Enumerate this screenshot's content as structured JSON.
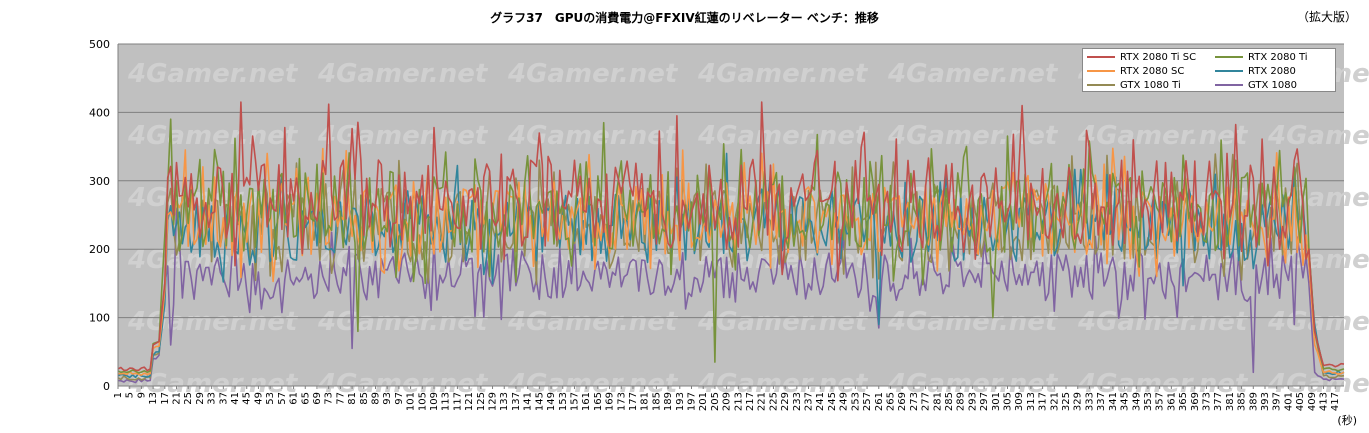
{
  "chart_title": "グラフ37　GPUの消費電力@FFXIV紅蓮のリベレーター ベンチ：推移",
  "edition_note": "（拡大版）",
  "watermark": "4Gamer.net",
  "chart_data": {
    "type": "line",
    "title": "グラフ37　GPUの消費電力@FFXIV紅蓮のリベレーター ベンチ：推移",
    "xlabel": "",
    "x_unit_label": "(秒)",
    "ylabel": "",
    "ylim": [
      0,
      500
    ],
    "yticks": [
      0,
      100,
      200,
      300,
      400,
      500
    ],
    "xlim": [
      1,
      420
    ],
    "xticks": [
      1,
      5,
      9,
      13,
      17,
      21,
      25,
      29,
      33,
      37,
      41,
      45,
      49,
      53,
      57,
      61,
      65,
      69,
      73,
      77,
      81,
      85,
      89,
      93,
      97,
      101,
      105,
      109,
      113,
      117,
      121,
      125,
      129,
      133,
      137,
      141,
      145,
      149,
      153,
      157,
      161,
      165,
      169,
      173,
      177,
      181,
      185,
      189,
      193,
      197,
      201,
      205,
      209,
      213,
      217,
      221,
      225,
      229,
      233,
      237,
      241,
      245,
      249,
      253,
      257,
      261,
      265,
      269,
      273,
      277,
      281,
      285,
      289,
      293,
      297,
      301,
      305,
      309,
      313,
      317,
      321,
      325,
      329,
      333,
      337,
      341,
      345,
      349,
      353,
      357,
      361,
      365,
      369,
      373,
      377,
      381,
      385,
      389,
      393,
      397,
      401,
      405,
      409,
      413,
      417
    ],
    "grid": "horizontal",
    "legend_position": "top-right",
    "plot_background": "#c0c0c0",
    "series": [
      {
        "name": "RTX 2080 Ti SC",
        "color": "#c0504d",
        "idle": 25,
        "load_mean": 265,
        "amp": 65,
        "key_points": [
          [
            1,
            25
          ],
          [
            12,
            25
          ],
          [
            13,
            60
          ],
          [
            15,
            65
          ],
          [
            17,
            150
          ],
          [
            20,
            250
          ],
          [
            43,
            415
          ],
          [
            48,
            330
          ],
          [
            73,
            412
          ],
          [
            78,
            330
          ],
          [
            142,
            330
          ],
          [
            192,
            395
          ],
          [
            221,
            415
          ],
          [
            307,
            368
          ],
          [
            310,
            410
          ],
          [
            348,
            360
          ],
          [
            380,
            340
          ],
          [
            403,
            330
          ],
          [
            408,
            200
          ],
          [
            410,
            80
          ],
          [
            413,
            30
          ],
          [
            420,
            32
          ]
        ]
      },
      {
        "name": "RTX 2080 Ti",
        "color": "#77933c",
        "idle": 22,
        "load_mean": 255,
        "amp": 60,
        "key_points": [
          [
            1,
            22
          ],
          [
            12,
            22
          ],
          [
            13,
            62
          ],
          [
            15,
            65
          ],
          [
            17,
            220
          ],
          [
            19,
            390
          ],
          [
            21,
            300
          ],
          [
            83,
            80
          ],
          [
            167,
            385
          ],
          [
            205,
            35
          ],
          [
            300,
            100
          ],
          [
            383,
            330
          ],
          [
            403,
            320
          ],
          [
            408,
            200
          ],
          [
            410,
            80
          ],
          [
            413,
            25
          ],
          [
            420,
            25
          ]
        ]
      },
      {
        "name": "RTX 2080 SC",
        "color": "#f79646",
        "idle": 18,
        "load_mean": 245,
        "amp": 55,
        "key_points": [
          [
            1,
            18
          ],
          [
            12,
            18
          ],
          [
            13,
            55
          ],
          [
            15,
            58
          ],
          [
            17,
            140
          ],
          [
            20,
            240
          ],
          [
            52,
            340
          ],
          [
            403,
            290
          ],
          [
            408,
            180
          ],
          [
            410,
            60
          ],
          [
            413,
            20
          ],
          [
            420,
            20
          ]
        ]
      },
      {
        "name": "RTX 2080",
        "color": "#31859c",
        "idle": 15,
        "load_mean": 230,
        "amp": 50,
        "key_points": [
          [
            1,
            15
          ],
          [
            12,
            15
          ],
          [
            13,
            45
          ],
          [
            15,
            50
          ],
          [
            17,
            120
          ],
          [
            20,
            220
          ],
          [
            209,
            340
          ],
          [
            261,
            90
          ],
          [
            403,
            320
          ],
          [
            408,
            180
          ],
          [
            410,
            90
          ],
          [
            413,
            20
          ],
          [
            420,
            20
          ]
        ]
      },
      {
        "name": "GTX 1080 Ti",
        "color": "#948a54",
        "idle": 12,
        "load_mean": 235,
        "amp": 55,
        "key_points": [
          [
            1,
            12
          ],
          [
            12,
            12
          ],
          [
            13,
            45
          ],
          [
            15,
            48
          ],
          [
            17,
            130
          ],
          [
            20,
            230
          ],
          [
            51,
            300
          ],
          [
            403,
            300
          ],
          [
            408,
            200
          ],
          [
            410,
            80
          ],
          [
            413,
            15
          ],
          [
            420,
            15
          ]
        ]
      },
      {
        "name": "GTX 1080",
        "color": "#8064a2",
        "idle": 8,
        "load_mean": 160,
        "amp": 35,
        "key_points": [
          [
            1,
            8
          ],
          [
            12,
            8
          ],
          [
            13,
            40
          ],
          [
            15,
            45
          ],
          [
            17,
            150
          ],
          [
            19,
            60
          ],
          [
            21,
            260
          ],
          [
            81,
            55
          ],
          [
            261,
            85
          ],
          [
            389,
            20
          ],
          [
            403,
            90
          ],
          [
            408,
            150
          ],
          [
            410,
            20
          ],
          [
            413,
            10
          ],
          [
            420,
            10
          ]
        ]
      }
    ]
  }
}
